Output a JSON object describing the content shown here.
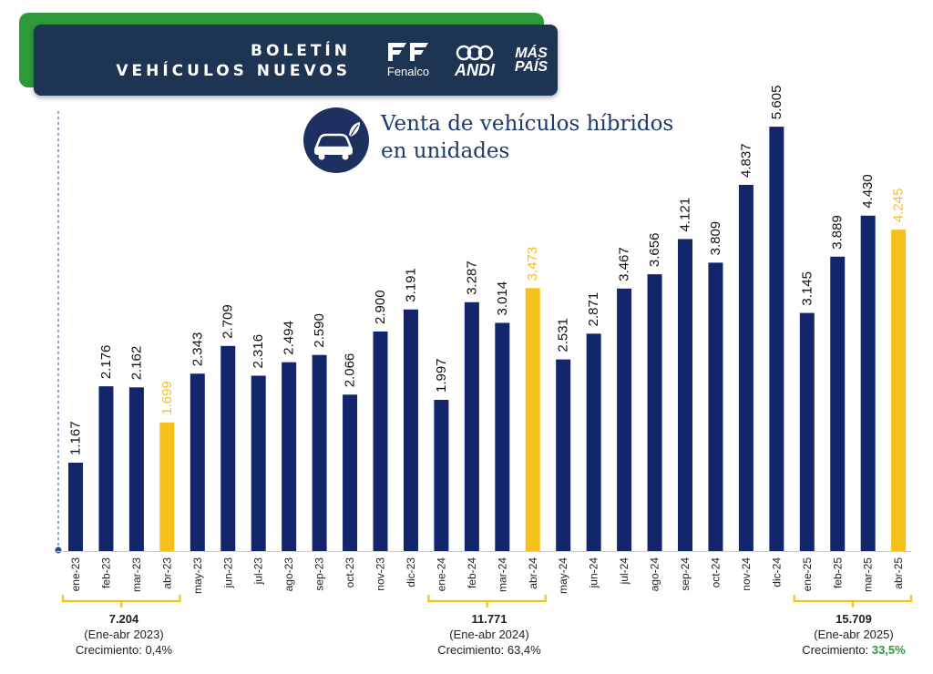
{
  "header": {
    "title_line1": "BOLETÍN",
    "title_line2": "VEHÍCULOS NUEVOS",
    "logos": {
      "fenalco": "Fenalco",
      "andi": "ANDI",
      "mas": "MÁS",
      "pais": "PAÍS"
    }
  },
  "chart_title": {
    "line1": "Venta de vehículos híbridos",
    "line2": "en unidades",
    "icon": "car-leaf-icon"
  },
  "colors": {
    "bar": "#13266b",
    "highlight": "#f5c11a",
    "green": "#2e9a3a"
  },
  "chart_data": {
    "type": "bar",
    "title": "Venta de vehículos híbridos en unidades",
    "xlabel": "",
    "ylabel": "",
    "ylim": [
      0,
      6000
    ],
    "categories": [
      "ene-23",
      "feb-23",
      "mar-23",
      "abr-23",
      "may-23",
      "jun-23",
      "jul-23",
      "ago-23",
      "sep-23",
      "oct-23",
      "nov-23",
      "dic-23",
      "ene-24",
      "feb-24",
      "mar-24",
      "abr-24",
      "may-24",
      "jun-24",
      "jul-24",
      "ago-24",
      "sep-24",
      "oct-24",
      "nov-24",
      "dic-24",
      "ene-25",
      "feb-25",
      "mar-25",
      "abr-25"
    ],
    "values": [
      1167,
      2176,
      2162,
      1699,
      2343,
      2709,
      2316,
      2494,
      2590,
      2066,
      2900,
      3191,
      1997,
      3287,
      3014,
      3473,
      2531,
      2871,
      3467,
      3656,
      4121,
      3809,
      4837,
      5605,
      3145,
      3889,
      4430,
      4245
    ],
    "value_labels": [
      "1.167",
      "2.176",
      "2.162",
      "1.699",
      "2.343",
      "2.709",
      "2.316",
      "2.494",
      "2.590",
      "2.066",
      "2.900",
      "3.191",
      "1.997",
      "3.287",
      "3.014",
      "3.473",
      "2.531",
      "2.871",
      "3.467",
      "3.656",
      "4.121",
      "3.809",
      "4.837",
      "5.605",
      "3.145",
      "3.889",
      "4.430",
      "4.245"
    ],
    "highlighted": [
      "abr-23",
      "abr-24",
      "abr-25"
    ]
  },
  "summaries": [
    {
      "total": "7.204",
      "period": "(Ene-abr 2023)",
      "growth_label": "Crecimiento:",
      "growth_value": "0,4%"
    },
    {
      "total": "11.771",
      "period": "(Ene-abr 2024)",
      "growth_label": "Crecimiento:",
      "growth_value": "63,4%"
    },
    {
      "total": "15.709",
      "period": "(Ene-abr 2025)",
      "growth_label": "Crecimiento:",
      "growth_value": "33,5%"
    }
  ]
}
